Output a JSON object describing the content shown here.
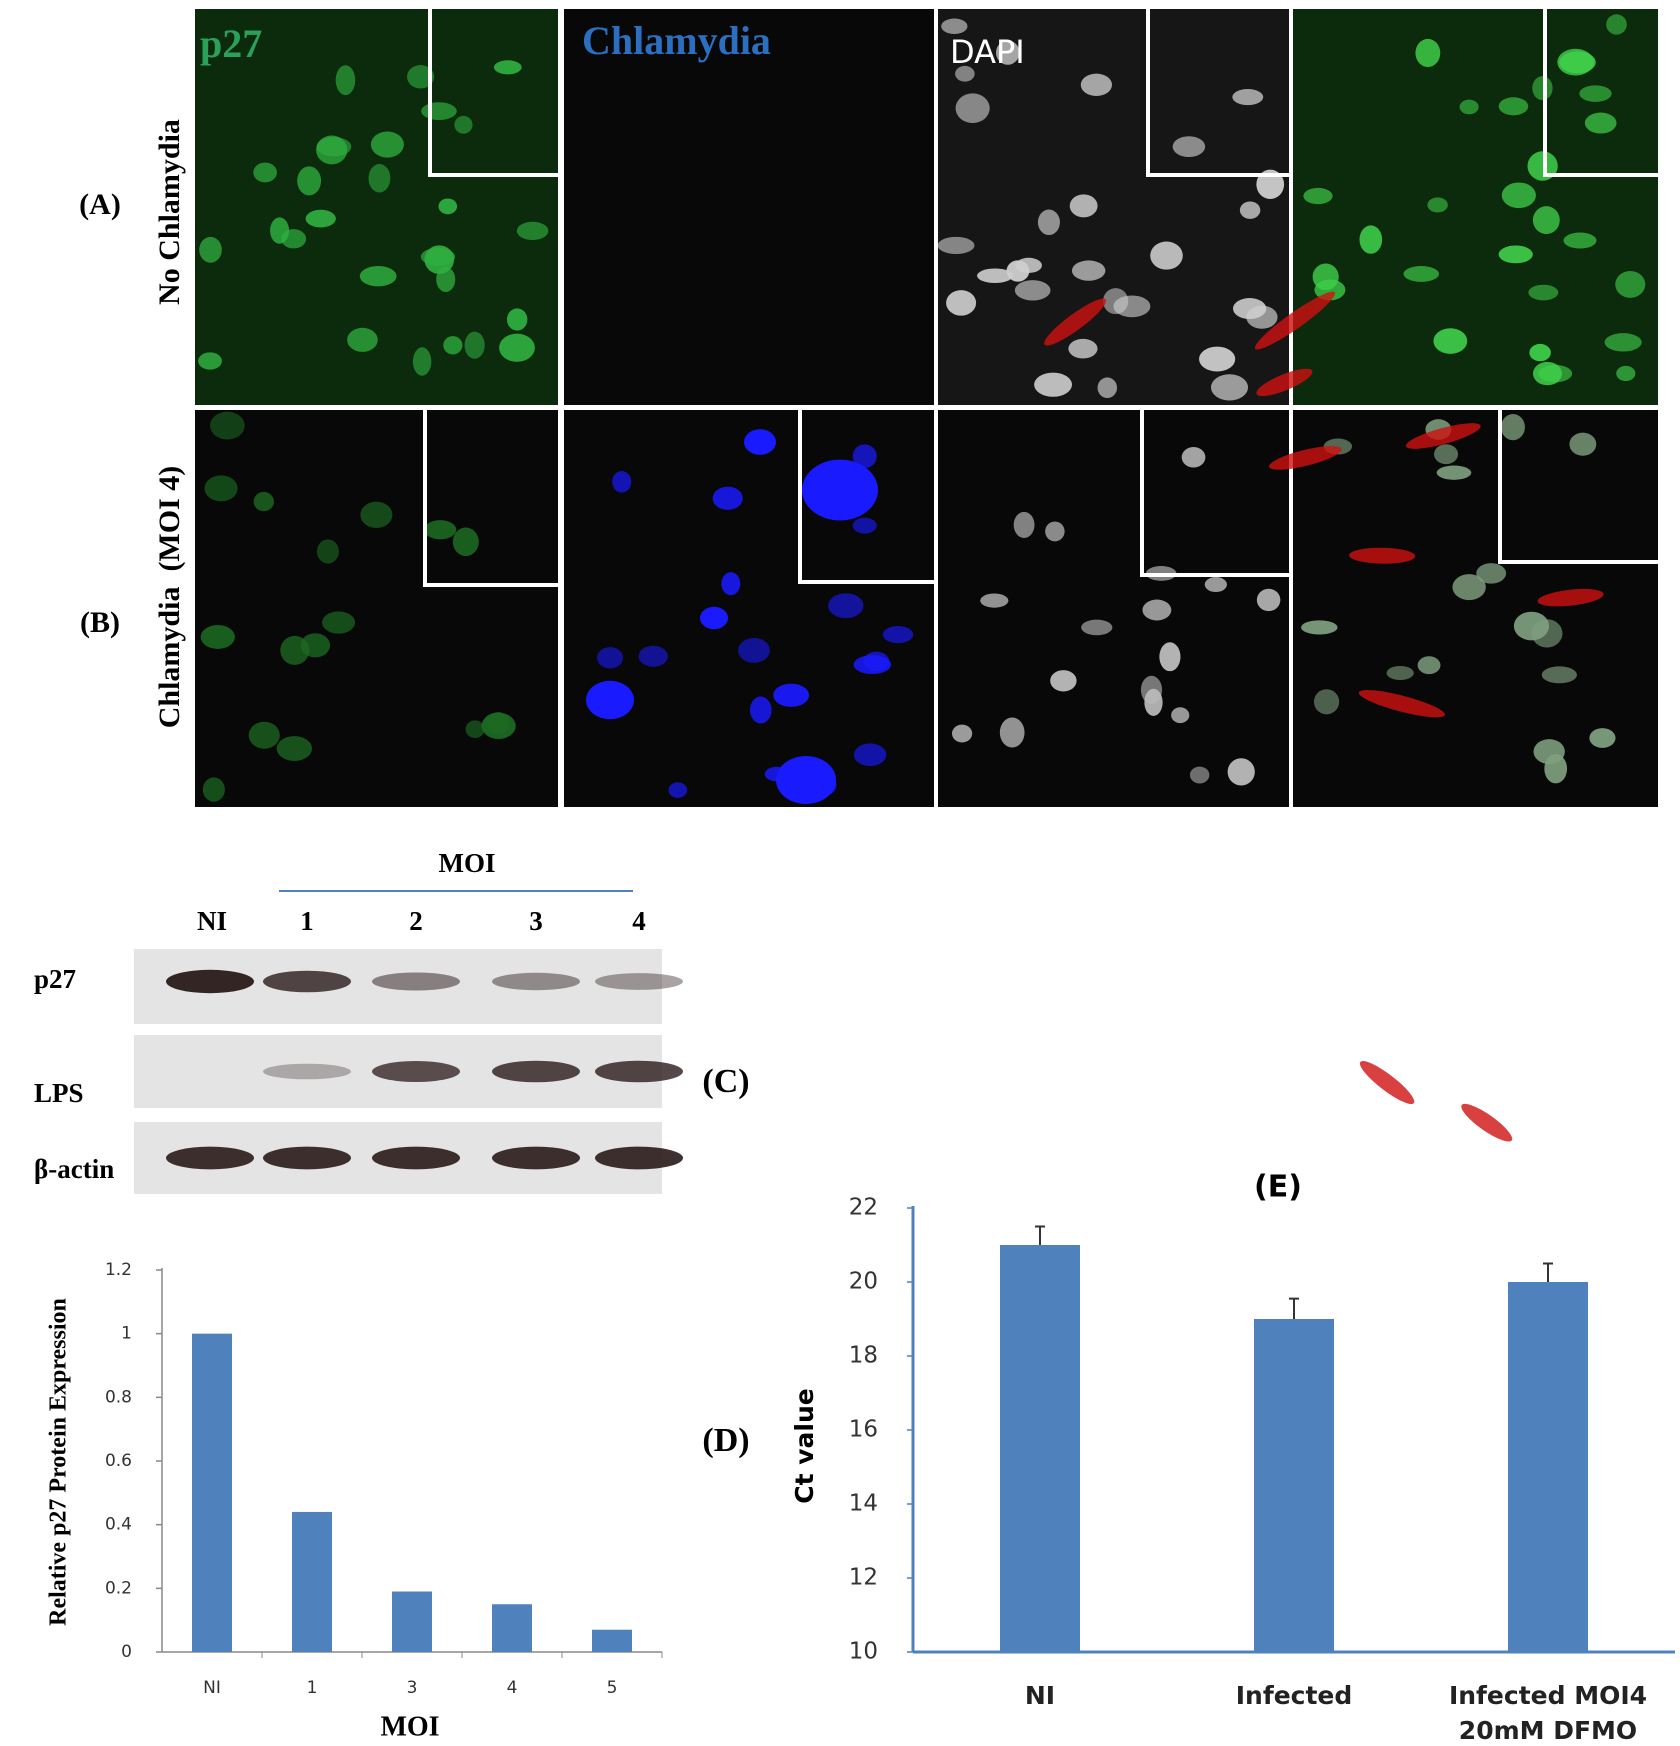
{
  "figure": {
    "channels": [
      "p27",
      "Chlamydia",
      "DAPI"
    ],
    "panel_a_label": "(A)",
    "panel_a_condition": "No Chlamydia",
    "panel_b_label": "(B)",
    "panel_b_condition": "Chlamydia  (MOI 4)"
  },
  "blot": {
    "group_label": "MOI",
    "lanes": [
      "NI",
      "1",
      "2",
      "3",
      "4"
    ],
    "rows": [
      "p27",
      "LPS",
      "β-actin"
    ],
    "panel_label": "(C)"
  },
  "chart_data": [
    {
      "type": "bar",
      "panel_label": "(D)",
      "x_label": "MOI",
      "y_label": "Relative p27 Protein Expression",
      "categories": [
        "NI",
        "1",
        "3",
        "4",
        "5"
      ],
      "values": [
        1,
        0.44,
        0.19,
        0.15,
        0.07
      ],
      "color": "#4f81bd",
      "ylim": [
        0,
        1.2
      ],
      "yticks": [
        0,
        0.2,
        0.4,
        0.6,
        0.8,
        1,
        1.2
      ]
    },
    {
      "type": "bar",
      "title": "(E)",
      "y_label": "Ct value",
      "categories": [
        "NI",
        "Infected",
        "Infected MOI4 20mM DFMO"
      ],
      "values": [
        21,
        19,
        20
      ],
      "errors": [
        0.5,
        0.55,
        0.5
      ],
      "color": "#4f81bd",
      "ylim": [
        10,
        22
      ],
      "yticks": [
        10,
        12,
        14,
        16,
        18,
        20,
        22
      ]
    }
  ]
}
